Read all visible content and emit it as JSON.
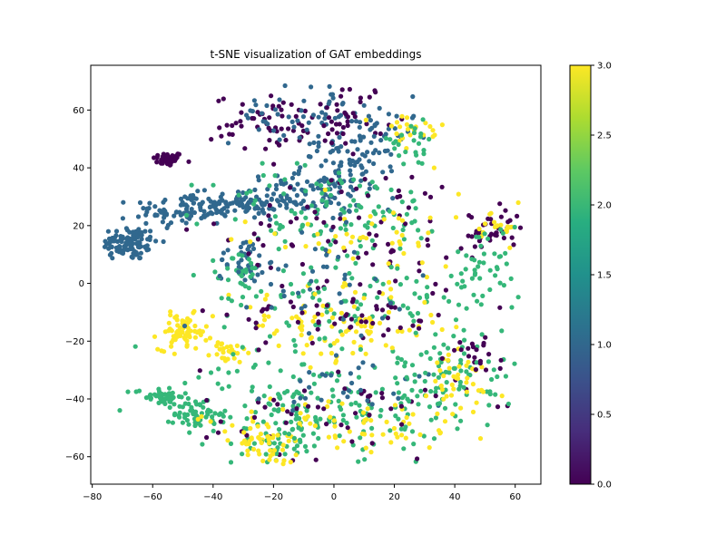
{
  "chart_data": {
    "type": "scatter",
    "title": "t-SNE visualization of GAT embeddings",
    "xlabel": "",
    "ylabel": "",
    "xlim": [
      -80.5,
      68.5
    ],
    "ylim": [
      -69.5,
      75.5
    ],
    "x_ticks": [
      -80,
      -60,
      -40,
      -20,
      0,
      20,
      40,
      60
    ],
    "y_ticks": [
      -60,
      -40,
      -20,
      0,
      20,
      40,
      60
    ],
    "x_tick_labels": [
      "−80",
      "−60",
      "−40",
      "−20",
      "0",
      "20",
      "40",
      "60"
    ],
    "y_tick_labels": [
      "−60",
      "−40",
      "−20",
      "0",
      "20",
      "40",
      "60"
    ],
    "grid": false,
    "colormap": "viridis",
    "color_scale": {
      "min": 0.0,
      "max": 3.0,
      "ticks": [
        0.0,
        0.5,
        1.0,
        1.5,
        2.0,
        2.5,
        3.0
      ],
      "tick_labels": [
        "0.0",
        "0.5",
        "1.0",
        "1.5",
        "2.0",
        "2.5",
        "3.0"
      ]
    },
    "class_colors": [
      "#440154",
      "#31688e",
      "#35b779",
      "#fde725"
    ],
    "clusters": [
      {
        "class": 0,
        "center": [
          -55,
          43
        ],
        "spread": [
          2.5,
          1.2
        ],
        "n": 45
      },
      {
        "class": 1,
        "center": [
          -68,
          14
        ],
        "spread": [
          5,
          3
        ],
        "n": 110
      },
      {
        "class": 1,
        "center": [
          -50,
          25
        ],
        "spread": [
          8,
          3
        ],
        "n": 90
      },
      {
        "class": 1,
        "center": [
          -30,
          28
        ],
        "spread": [
          8,
          2
        ],
        "n": 80
      },
      {
        "class": 1,
        "center": [
          -10,
          30
        ],
        "spread": [
          10,
          4
        ],
        "n": 90
      },
      {
        "class": 1,
        "center": [
          5,
          40
        ],
        "spread": [
          8,
          5
        ],
        "n": 70
      },
      {
        "class": 0,
        "center": [
          -20,
          55
        ],
        "spread": [
          10,
          5
        ],
        "n": 55
      },
      {
        "class": 1,
        "center": [
          -10,
          58
        ],
        "spread": [
          12,
          5
        ],
        "n": 60
      },
      {
        "class": 0,
        "center": [
          5,
          58
        ],
        "spread": [
          6,
          6
        ],
        "n": 40
      },
      {
        "class": 1,
        "center": [
          10,
          50
        ],
        "spread": [
          8,
          5
        ],
        "n": 40
      },
      {
        "class": 3,
        "center": [
          25,
          52
        ],
        "spread": [
          6,
          4
        ],
        "n": 25
      },
      {
        "class": 2,
        "center": [
          25,
          48
        ],
        "spread": [
          6,
          4
        ],
        "n": 25
      },
      {
        "class": 3,
        "center": [
          -50,
          -17
        ],
        "spread": [
          4,
          3
        ],
        "n": 70
      },
      {
        "class": 3,
        "center": [
          -35,
          -24
        ],
        "spread": [
          3,
          2
        ],
        "n": 25
      },
      {
        "class": 2,
        "center": [
          -58,
          -39
        ],
        "spread": [
          4,
          1.5
        ],
        "n": 45
      },
      {
        "class": 2,
        "center": [
          -45,
          -45
        ],
        "spread": [
          4,
          3
        ],
        "n": 55
      },
      {
        "class": 1,
        "center": [
          -30,
          8
        ],
        "spread": [
          4,
          4
        ],
        "n": 40
      },
      {
        "class": 2,
        "center": [
          -30,
          3
        ],
        "spread": [
          3,
          4
        ],
        "n": 25
      },
      {
        "class": 2,
        "center": [
          0,
          25
        ],
        "spread": [
          20,
          8
        ],
        "n": 110
      },
      {
        "class": 0,
        "center": [
          10,
          20
        ],
        "spread": [
          22,
          10
        ],
        "n": 70
      },
      {
        "class": 3,
        "center": [
          10,
          15
        ],
        "spread": [
          22,
          8
        ],
        "n": 50
      },
      {
        "class": 2,
        "center": [
          5,
          -5
        ],
        "spread": [
          22,
          8
        ],
        "n": 110
      },
      {
        "class": 3,
        "center": [
          0,
          -15
        ],
        "spread": [
          18,
          6
        ],
        "n": 90
      },
      {
        "class": 0,
        "center": [
          5,
          -10
        ],
        "spread": [
          20,
          6
        ],
        "n": 60
      },
      {
        "class": 1,
        "center": [
          -5,
          0
        ],
        "spread": [
          15,
          8
        ],
        "n": 40
      },
      {
        "class": 0,
        "center": [
          52,
          18
        ],
        "spread": [
          5,
          4
        ],
        "n": 40
      },
      {
        "class": 3,
        "center": [
          55,
          18
        ],
        "spread": [
          4,
          4
        ],
        "n": 20
      },
      {
        "class": 2,
        "center": [
          50,
          5
        ],
        "spread": [
          6,
          8
        ],
        "n": 45
      },
      {
        "class": 2,
        "center": [
          -5,
          -42
        ],
        "spread": [
          22,
          8
        ],
        "n": 180
      },
      {
        "class": 3,
        "center": [
          0,
          -50
        ],
        "spread": [
          22,
          6
        ],
        "n": 80
      },
      {
        "class": 0,
        "center": [
          0,
          -45
        ],
        "spread": [
          22,
          8
        ],
        "n": 55
      },
      {
        "class": 1,
        "center": [
          10,
          -35
        ],
        "spread": [
          15,
          6
        ],
        "n": 30
      },
      {
        "class": 2,
        "center": [
          40,
          -30
        ],
        "spread": [
          10,
          7
        ],
        "n": 80
      },
      {
        "class": 3,
        "center": [
          40,
          -35
        ],
        "spread": [
          8,
          6
        ],
        "n": 40
      },
      {
        "class": 0,
        "center": [
          45,
          -25
        ],
        "spread": [
          8,
          4
        ],
        "n": 20
      },
      {
        "class": 2,
        "center": [
          -18,
          -55
        ],
        "spread": [
          6,
          4
        ],
        "n": 40
      },
      {
        "class": 3,
        "center": [
          -22,
          -56
        ],
        "spread": [
          5,
          3
        ],
        "n": 35
      }
    ]
  }
}
